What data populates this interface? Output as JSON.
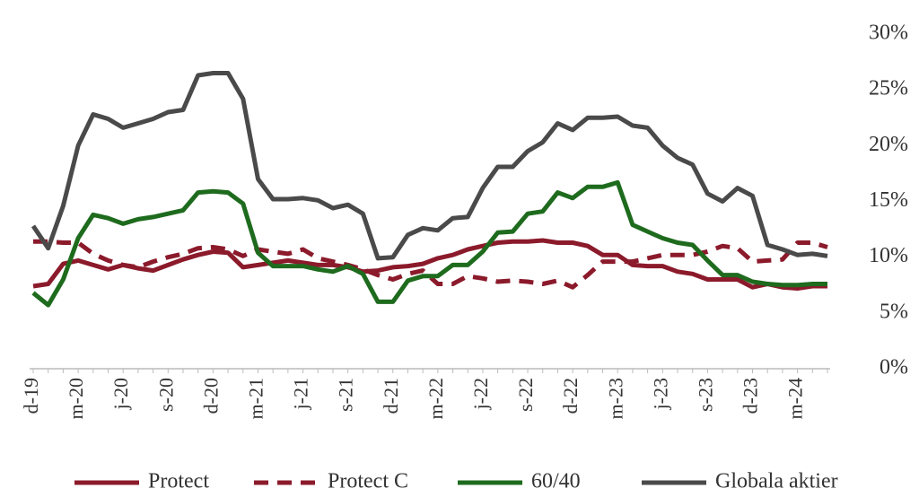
{
  "chart_data": {
    "type": "line",
    "categories": [
      "d-19",
      null,
      null,
      "m-20",
      null,
      null,
      "j-20",
      null,
      null,
      "s-20",
      null,
      null,
      "d-20",
      null,
      null,
      "m-21",
      null,
      null,
      "j-21",
      null,
      null,
      "s-21",
      null,
      null,
      "d-21",
      null,
      null,
      "m-22",
      null,
      null,
      "j-22",
      null,
      null,
      "s-22",
      null,
      null,
      "d-22",
      null,
      null,
      "m-23",
      null,
      null,
      "j-23",
      null,
      null,
      "s-23",
      null,
      null,
      "d-23",
      null,
      null,
      "m-24",
      null,
      null
    ],
    "series": [
      {
        "name": "Protect",
        "color": "#8b1a2b",
        "line_style": "solid",
        "values": [
          7.4,
          7.6,
          9.4,
          9.7,
          9.3,
          8.9,
          9.3,
          9.0,
          8.8,
          9.3,
          9.8,
          10.2,
          10.5,
          10.4,
          9.1,
          9.3,
          9.5,
          9.7,
          9.5,
          9.3,
          9.3,
          9.1,
          8.7,
          8.8,
          9.1,
          9.2,
          9.4,
          9.9,
          10.2,
          10.7,
          11.0,
          11.3,
          11.4,
          11.4,
          11.5,
          11.3,
          11.3,
          11.0,
          10.2,
          10.2,
          9.3,
          9.2,
          9.2,
          8.7,
          8.5,
          8.0,
          8.0,
          8.0,
          7.3,
          7.6,
          7.3,
          7.2,
          7.4,
          7.4
        ]
      },
      {
        "name": "Protect C",
        "color": "#8b1a2b",
        "line_style": "dashed",
        "values": [
          11.4,
          11.4,
          11.3,
          11.3,
          10.3,
          9.7,
          9.3,
          9.1,
          9.6,
          10.0,
          10.3,
          10.8,
          10.9,
          10.7,
          10.1,
          10.7,
          10.5,
          10.3,
          10.7,
          9.9,
          9.6,
          9.3,
          8.9,
          8.4,
          8.0,
          8.5,
          8.8,
          7.6,
          7.6,
          8.3,
          8.1,
          7.8,
          7.9,
          7.8,
          7.6,
          7.9,
          7.3,
          8.4,
          9.6,
          9.6,
          9.6,
          9.9,
          10.2,
          10.2,
          10.2,
          10.5,
          11.0,
          10.8,
          9.6,
          9.7,
          9.8,
          11.3,
          11.3,
          10.9
        ]
      },
      {
        "name": "60/40",
        "color": "#1e6b1e",
        "line_style": "solid",
        "values": [
          6.8,
          5.7,
          8.0,
          11.7,
          13.8,
          13.5,
          13.0,
          13.4,
          13.6,
          13.9,
          14.2,
          15.8,
          15.9,
          15.8,
          14.8,
          10.4,
          9.2,
          9.2,
          9.2,
          8.9,
          8.7,
          9.2,
          8.5,
          6.0,
          6.0,
          7.9,
          8.3,
          8.3,
          9.3,
          9.3,
          10.5,
          12.2,
          12.3,
          13.9,
          14.1,
          15.8,
          15.3,
          16.3,
          16.3,
          16.7,
          12.9,
          12.3,
          11.7,
          11.3,
          11.1,
          9.7,
          8.4,
          8.4,
          7.8,
          7.6,
          7.5,
          7.5,
          7.6,
          7.6
        ]
      },
      {
        "name": "Globala aktier",
        "color": "#4a4a4a",
        "line_style": "solid",
        "values": [
          12.8,
          10.8,
          14.6,
          20.0,
          22.8,
          22.4,
          21.6,
          22.0,
          22.4,
          23.0,
          23.2,
          26.3,
          26.5,
          26.5,
          24.2,
          17.0,
          15.2,
          15.2,
          15.3,
          15.1,
          14.4,
          14.7,
          13.9,
          9.9,
          10.0,
          12.0,
          12.6,
          12.4,
          13.5,
          13.6,
          16.2,
          18.1,
          18.1,
          19.5,
          20.3,
          22.0,
          21.4,
          22.5,
          22.5,
          22.6,
          21.8,
          21.6,
          20.0,
          18.9,
          18.3,
          15.7,
          15.0,
          16.2,
          15.5,
          11.1,
          10.7,
          10.2,
          10.3,
          10.1
        ]
      }
    ],
    "ylim": [
      0,
      30
    ],
    "yticks": [
      {
        "value": 0,
        "label": "0%"
      },
      {
        "value": 5,
        "label": "5%"
      },
      {
        "value": 10,
        "label": "10%"
      },
      {
        "value": 15,
        "label": "15%"
      },
      {
        "value": 20,
        "label": "20%"
      },
      {
        "value": 25,
        "label": "25%"
      },
      {
        "value": 30,
        "label": "30%"
      }
    ],
    "grid": false,
    "legend": "bottom"
  }
}
